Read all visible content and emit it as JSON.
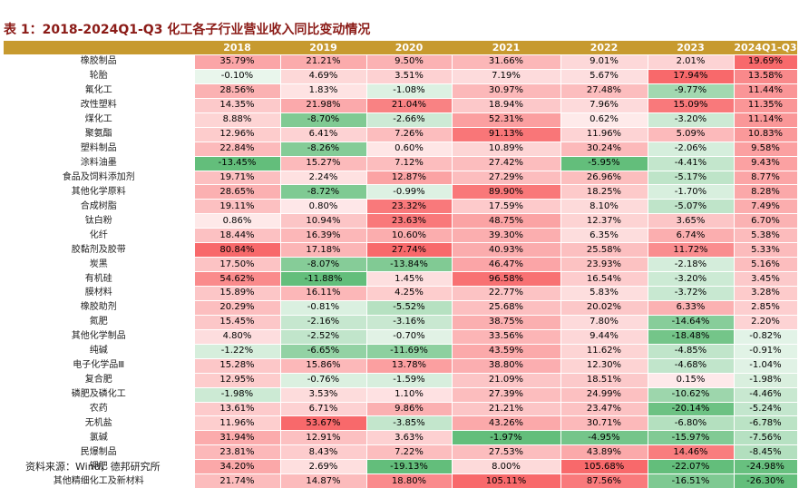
{
  "title": "表 1：2018-2024Q1-Q3 化工各子行业营业收入同比变动情况",
  "columns": [
    "",
    "2018",
    "2019",
    "2020",
    "2021",
    "2022",
    "2023",
    "2024Q1-Q3"
  ],
  "rows": [
    {
      "name": "橡胶制品",
      "values": [
        "35.79%",
        "21.21%",
        "9.50%",
        "31.66%",
        "9.01%",
        "2.01%",
        "19.69%"
      ]
    },
    {
      "name": "轮胎",
      "values": [
        "-0.10%",
        "4.69%",
        "3.51%",
        "7.19%",
        "5.67%",
        "17.94%",
        "13.58%"
      ]
    },
    {
      "name": "氟化工",
      "values": [
        "28.56%",
        "1.83%",
        "-1.08%",
        "30.97%",
        "27.48%",
        "-9.77%",
        "11.44%"
      ]
    },
    {
      "name": "改性塑料",
      "values": [
        "14.35%",
        "21.98%",
        "21.04%",
        "18.94%",
        "7.96%",
        "15.09%",
        "11.35%"
      ]
    },
    {
      "name": "煤化工",
      "values": [
        "8.88%",
        "-8.70%",
        "-2.66%",
        "52.31%",
        "0.62%",
        "-3.20%",
        "11.14%"
      ]
    },
    {
      "name": "聚氨酯",
      "values": [
        "12.96%",
        "6.41%",
        "7.26%",
        "91.13%",
        "11.96%",
        "5.09%",
        "10.83%"
      ]
    },
    {
      "name": "塑料制品",
      "values": [
        "22.84%",
        "-8.26%",
        "0.60%",
        "10.89%",
        "30.24%",
        "-2.06%",
        "9.58%"
      ]
    },
    {
      "name": "涂料油墨",
      "values": [
        "-13.45%",
        "15.27%",
        "7.12%",
        "27.42%",
        "-5.95%",
        "-4.41%",
        "9.43%"
      ]
    },
    {
      "name": "食品及饲料添加剂",
      "values": [
        "19.71%",
        "2.24%",
        "12.87%",
        "27.29%",
        "26.96%",
        "-5.17%",
        "8.77%"
      ]
    },
    {
      "name": "其他化学原料",
      "values": [
        "28.65%",
        "-8.72%",
        "-0.99%",
        "89.90%",
        "18.25%",
        "-1.70%",
        "8.28%"
      ]
    },
    {
      "name": "合成树脂",
      "values": [
        "19.11%",
        "0.80%",
        "23.32%",
        "17.59%",
        "8.10%",
        "-5.07%",
        "7.49%"
      ]
    },
    {
      "name": "钛白粉",
      "values": [
        "0.86%",
        "10.94%",
        "23.63%",
        "48.75%",
        "12.37%",
        "3.65%",
        "6.70%"
      ]
    },
    {
      "name": "化纤",
      "values": [
        "18.44%",
        "16.39%",
        "10.60%",
        "39.30%",
        "6.35%",
        "6.74%",
        "5.38%"
      ]
    },
    {
      "name": "胶黏剂及胶带",
      "values": [
        "80.84%",
        "17.18%",
        "27.74%",
        "40.93%",
        "25.58%",
        "11.72%",
        "5.33%"
      ]
    },
    {
      "name": "炭黑",
      "values": [
        "17.50%",
        "-8.07%",
        "-13.84%",
        "46.47%",
        "23.93%",
        "-2.18%",
        "5.16%"
      ]
    },
    {
      "name": "有机硅",
      "values": [
        "54.62%",
        "-11.88%",
        "1.45%",
        "96.58%",
        "16.54%",
        "-3.20%",
        "3.45%"
      ]
    },
    {
      "name": "膜材料",
      "values": [
        "15.89%",
        "16.11%",
        "4.25%",
        "22.77%",
        "5.83%",
        "-3.72%",
        "3.28%"
      ]
    },
    {
      "name": "橡胶助剂",
      "values": [
        "20.29%",
        "-0.81%",
        "-5.52%",
        "25.68%",
        "20.02%",
        "6.33%",
        "2.85%"
      ]
    },
    {
      "name": "氮肥",
      "values": [
        "15.45%",
        "-2.16%",
        "-3.16%",
        "38.75%",
        "7.80%",
        "-14.64%",
        "2.20%"
      ]
    },
    {
      "name": "其他化学制品",
      "values": [
        "4.80%",
        "-2.52%",
        "-0.70%",
        "33.56%",
        "9.44%",
        "-18.48%",
        "-0.82%"
      ]
    },
    {
      "name": "纯碱",
      "values": [
        "-1.22%",
        "-6.65%",
        "-11.69%",
        "43.59%",
        "11.62%",
        "-4.85%",
        "-0.91%"
      ]
    },
    {
      "name": "电子化学品Ⅲ",
      "values": [
        "15.28%",
        "15.86%",
        "13.78%",
        "38.80%",
        "12.30%",
        "-4.68%",
        "-1.04%"
      ]
    },
    {
      "name": "复合肥",
      "values": [
        "12.95%",
        "-0.76%",
        "-1.59%",
        "21.09%",
        "18.51%",
        "0.15%",
        "-1.98%"
      ]
    },
    {
      "name": "磷肥及磷化工",
      "values": [
        "-1.98%",
        "3.53%",
        "1.10%",
        "27.39%",
        "24.99%",
        "-10.62%",
        "-4.46%"
      ]
    },
    {
      "name": "农药",
      "values": [
        "13.61%",
        "6.71%",
        "9.86%",
        "21.21%",
        "23.47%",
        "-20.14%",
        "-5.24%"
      ]
    },
    {
      "name": "无机盐",
      "values": [
        "11.96%",
        "53.67%",
        "-3.85%",
        "43.26%",
        "30.71%",
        "-6.80%",
        "-6.78%"
      ]
    },
    {
      "name": "氯碱",
      "values": [
        "31.94%",
        "12.91%",
        "3.63%",
        "-1.97%",
        "-4.95%",
        "-15.97%",
        "-7.56%"
      ]
    },
    {
      "name": "民爆制品",
      "values": [
        "23.81%",
        "8.43%",
        "7.22%",
        "27.53%",
        "43.89%",
        "14.46%",
        "-8.45%"
      ]
    },
    {
      "name": "钾肥",
      "values": [
        "34.20%",
        "2.69%",
        "-19.13%",
        "8.00%",
        "105.68%",
        "-22.07%",
        "-24.98%"
      ]
    },
    {
      "name": "其他精细化工及新材料",
      "values": [
        "21.74%",
        "14.87%",
        "18.80%",
        "105.11%",
        "87.56%",
        "-16.51%",
        "-26.30%"
      ]
    }
  ],
  "source": "资料来源：Wind，德邦研究所",
  "colors": {
    "header": "#c79a2f",
    "title": "#8b1b17",
    "positive": "#f8696b",
    "negative": "#63be7b",
    "neutral": "#ffffff"
  }
}
